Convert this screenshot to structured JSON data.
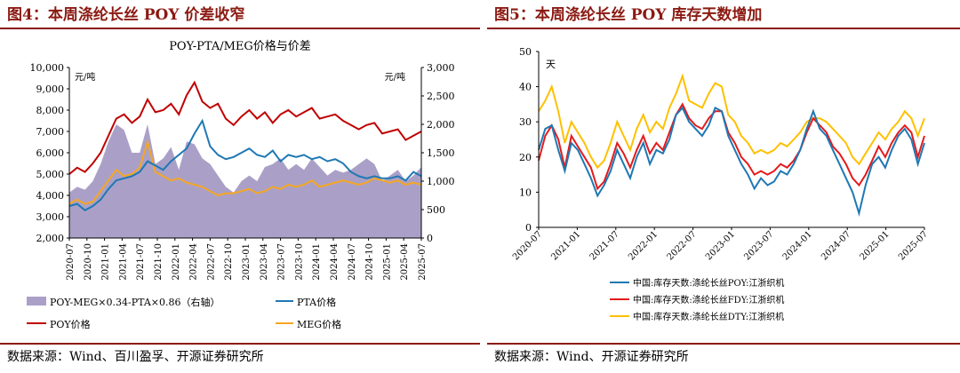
{
  "left": {
    "figure_title": "图4：本周涤纶长丝 POY 价差收窄",
    "source": "数据来源：Wind、百川盈孚、开源证券研究所",
    "chart_data": {
      "type": "line",
      "title": "POY-PTA/MEG价格与价差",
      "left_unit": "元/吨",
      "right_unit": "元/吨",
      "y_left": {
        "min": 2000,
        "max": 10000,
        "ticks": [
          "2,000",
          "3,000",
          "4,000",
          "5,000",
          "6,000",
          "7,000",
          "8,000",
          "9,000",
          "10,000"
        ]
      },
      "y_right": {
        "min": 0,
        "max": 3000,
        "ticks": [
          "0",
          "500",
          "1,000",
          "1,500",
          "2,000",
          "2,500",
          "3,000"
        ]
      },
      "x_ticks": [
        "2020-07",
        "2020-10",
        "2021-01",
        "2021-04",
        "2021-07",
        "2021-10",
        "2022-01",
        "2022-04",
        "2022-07",
        "2022-10",
        "2023-01",
        "2023-04",
        "2023-07",
        "2023-10",
        "2024-01",
        "2024-04",
        "2024-07",
        "2024-10",
        "2025-01",
        "2025-04",
        "2025-07"
      ],
      "grid": false,
      "legend": [
        "POY-MEG×0.34-PTA×0.86（右轴）",
        "PTA价格",
        "POY价格",
        "MEG价格"
      ],
      "series": [
        {
          "name": "POY价格",
          "axis": "left",
          "color": "#c00000",
          "values": [
            5000,
            5300,
            5100,
            5500,
            6000,
            6800,
            7600,
            7800,
            7400,
            7700,
            8500,
            7900,
            8000,
            8300,
            7800,
            8700,
            9300,
            8400,
            8100,
            8300,
            7600,
            7300,
            7700,
            8000,
            7600,
            7900,
            7400,
            7800,
            8000,
            7700,
            7900,
            8100,
            7600,
            7700,
            7800,
            7500,
            7300,
            7100,
            7300,
            7400,
            6900,
            7000,
            7100,
            6600,
            6800,
            7000
          ]
        },
        {
          "name": "PTA价格",
          "axis": "left",
          "color": "#1f78b4",
          "values": [
            3500,
            3600,
            3300,
            3500,
            3800,
            4300,
            4700,
            4800,
            4900,
            5100,
            5600,
            5400,
            5200,
            5600,
            5900,
            6200,
            6900,
            7500,
            6300,
            5900,
            5700,
            5800,
            6000,
            6200,
            5900,
            5800,
            6100,
            5600,
            5900,
            5800,
            5900,
            5700,
            5800,
            5600,
            5700,
            5500,
            5100,
            4900,
            4800,
            4900,
            4800,
            4800,
            4900,
            4700,
            5100,
            4900
          ]
        },
        {
          "name": "MEG价格",
          "axis": "left",
          "color": "#f5a623",
          "values": [
            3600,
            3800,
            3600,
            3700,
            4200,
            4700,
            5200,
            4900,
            5000,
            5300,
            6500,
            5100,
            4900,
            4700,
            4800,
            4600,
            4500,
            4400,
            4200,
            4000,
            4100,
            4100,
            4200,
            4300,
            4100,
            4200,
            4400,
            4300,
            4500,
            4400,
            4500,
            4700,
            4400,
            4500,
            4600,
            4700,
            4600,
            4500,
            4600,
            4800,
            4700,
            4600,
            4700,
            4500,
            4600,
            4500
          ]
        },
        {
          "name": "POY-MEG×0.34-PTA×0.86（右轴）",
          "axis": "right",
          "color": "#9b8fbd",
          "type": "area",
          "values": [
            800,
            900,
            850,
            1000,
            1300,
            1700,
            2000,
            1900,
            1500,
            1500,
            2000,
            1300,
            1400,
            1600,
            1200,
            1700,
            1650,
            1400,
            1300,
            1100,
            900,
            800,
            1000,
            1100,
            1000,
            1250,
            1300,
            1400,
            1200,
            1300,
            1200,
            1400,
            1250,
            1100,
            1200,
            1150,
            1200,
            1300,
            1400,
            1300,
            1000,
            1100,
            1200,
            1000,
            1100,
            1250
          ]
        }
      ]
    }
  },
  "right": {
    "figure_title": "图5：本周涤纶长丝 POY 库存天数增加",
    "source": "数据来源：Wind、开源证券研究所",
    "chart_data": {
      "type": "line",
      "y_unit": "天",
      "y": {
        "min": 0,
        "max": 50,
        "ticks": [
          "0",
          "10",
          "20",
          "30",
          "40",
          "50"
        ]
      },
      "x_ticks": [
        "2020-07",
        "2021-01",
        "2021-07",
        "2022-01",
        "2022-07",
        "2023-01",
        "2023-07",
        "2024-01",
        "2024-07",
        "2025-01",
        "2025-07"
      ],
      "grid": false,
      "legend": [
        "中国:库存天数:涤纶长丝POY:江浙织机",
        "中国:库存天数:涤纶长丝FDY:江浙织机",
        "中国:库存天数:涤纶长丝DTY:江浙织机"
      ],
      "series": [
        {
          "name": "中国:库存天数:涤纶长丝POY:江浙织机",
          "color": "#1f78b4",
          "values": [
            22,
            28,
            29,
            22,
            16,
            24,
            22,
            18,
            14,
            9,
            12,
            16,
            22,
            18,
            14,
            20,
            24,
            18,
            22,
            21,
            25,
            32,
            34,
            30,
            28,
            26,
            29,
            34,
            33,
            26,
            22,
            18,
            15,
            11,
            14,
            12,
            13,
            16,
            15,
            18,
            22,
            28,
            33,
            28,
            26,
            22,
            18,
            14,
            10,
            4,
            12,
            18,
            20,
            17,
            22,
            26,
            28,
            25,
            18,
            24
          ]
        },
        {
          "name": "中国:库存天数:涤纶长丝FDY:江浙织机",
          "color": "#e31a1c",
          "values": [
            19,
            26,
            29,
            25,
            17,
            26,
            23,
            20,
            17,
            11,
            13,
            18,
            24,
            21,
            17,
            22,
            26,
            21,
            24,
            22,
            27,
            32,
            35,
            31,
            29,
            28,
            31,
            33,
            33,
            27,
            24,
            20,
            18,
            15,
            16,
            15,
            16,
            18,
            17,
            19,
            22,
            27,
            31,
            29,
            27,
            23,
            21,
            18,
            14,
            12,
            15,
            19,
            23,
            20,
            24,
            27,
            29,
            27,
            20,
            26
          ]
        },
        {
          "name": "中国:库存天数:涤纶长丝DTY:江浙织机",
          "color": "#ffc000",
          "values": [
            33,
            36,
            40,
            33,
            24,
            30,
            27,
            24,
            20,
            17,
            19,
            24,
            30,
            26,
            22,
            28,
            32,
            27,
            30,
            28,
            34,
            38,
            43,
            36,
            35,
            34,
            38,
            41,
            40,
            32,
            30,
            26,
            24,
            21,
            22,
            21,
            22,
            24,
            23,
            25,
            27,
            30,
            31,
            31,
            30,
            28,
            26,
            24,
            20,
            18,
            21,
            24,
            27,
            25,
            28,
            30,
            33,
            31,
            26,
            31
          ]
        }
      ]
    }
  }
}
